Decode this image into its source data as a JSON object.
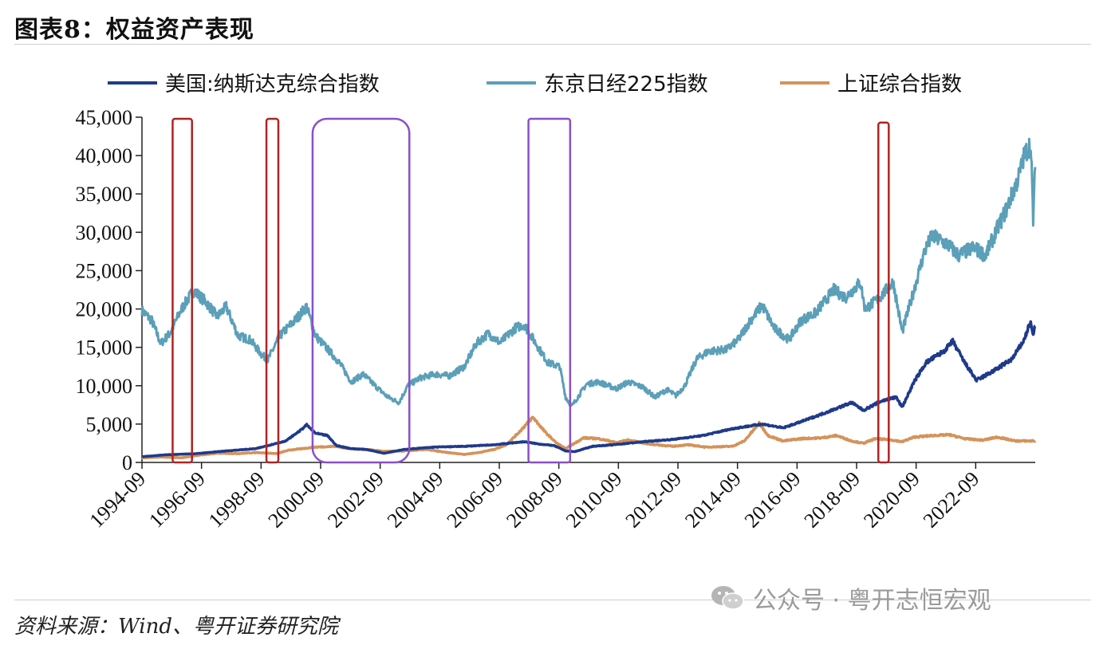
{
  "header": {
    "title": "图表8：权益资产表现"
  },
  "footer": {
    "source": "资料来源：Wind、粤开证券研究院"
  },
  "watermark": {
    "text": "公众号 · 粤开志恒宏观",
    "icon": "wechat-icon"
  },
  "chart_data": {
    "type": "line",
    "grid": false,
    "legend_position": "top",
    "ylim": [
      0,
      45000
    ],
    "yticks": [
      "0",
      "5,000",
      "10,000",
      "15,000",
      "20,000",
      "25,000",
      "30,000",
      "35,000",
      "40,000",
      "45,000"
    ],
    "yticks_values": [
      0,
      5000,
      10000,
      15000,
      20000,
      25000,
      30000,
      35000,
      40000,
      45000
    ],
    "xlim": [
      1994.67,
      2024.67
    ],
    "xticks": [
      "1994-09",
      "1996-09",
      "1998-09",
      "2000-09",
      "2002-09",
      "2004-09",
      "2006-09",
      "2008-09",
      "2010-09",
      "2012-09",
      "2014-09",
      "2016-09",
      "2018-09",
      "2020-09",
      "2022-09"
    ],
    "xticks_values": [
      1994.67,
      1996.67,
      1998.67,
      2000.67,
      2002.67,
      2004.67,
      2006.67,
      2008.67,
      2010.67,
      2012.67,
      2014.67,
      2016.67,
      2018.67,
      2020.67,
      2022.67
    ],
    "series": [
      {
        "name": "美国:纳斯达克综合指数",
        "color": "#1f3a8a",
        "points": [
          [
            1994.67,
            750
          ],
          [
            1995.5,
            1000
          ],
          [
            1996.5,
            1150
          ],
          [
            1997.5,
            1500
          ],
          [
            1998.5,
            1800
          ],
          [
            1999.5,
            2800
          ],
          [
            2000.0,
            4200
          ],
          [
            2000.2,
            4900
          ],
          [
            2000.5,
            3800
          ],
          [
            2000.9,
            3500
          ],
          [
            2001.2,
            2200
          ],
          [
            2001.7,
            1800
          ],
          [
            2002.2,
            1700
          ],
          [
            2002.8,
            1200
          ],
          [
            2003.5,
            1700
          ],
          [
            2004.5,
            2000
          ],
          [
            2005.5,
            2100
          ],
          [
            2006.5,
            2300
          ],
          [
            2007.5,
            2700
          ],
          [
            2008.0,
            2400
          ],
          [
            2008.5,
            2200
          ],
          [
            2008.9,
            1500
          ],
          [
            2009.2,
            1400
          ],
          [
            2009.8,
            2100
          ],
          [
            2010.5,
            2300
          ],
          [
            2011.5,
            2700
          ],
          [
            2012.5,
            3000
          ],
          [
            2013.5,
            3500
          ],
          [
            2014.5,
            4400
          ],
          [
            2015.5,
            5000
          ],
          [
            2016.2,
            4500
          ],
          [
            2016.8,
            5300
          ],
          [
            2017.5,
            6300
          ],
          [
            2018.5,
            7800
          ],
          [
            2018.9,
            6800
          ],
          [
            2019.5,
            8000
          ],
          [
            2020.0,
            8500
          ],
          [
            2020.2,
            7200
          ],
          [
            2020.6,
            10500
          ],
          [
            2021.0,
            13000
          ],
          [
            2021.6,
            14500
          ],
          [
            2021.9,
            15800
          ],
          [
            2022.3,
            13000
          ],
          [
            2022.7,
            10700
          ],
          [
            2023.3,
            12000
          ],
          [
            2023.9,
            13500
          ],
          [
            2024.3,
            16000
          ],
          [
            2024.5,
            18300
          ],
          [
            2024.6,
            16600
          ],
          [
            2024.67,
            17800
          ]
        ]
      },
      {
        "name": "东京日经225指数",
        "color": "#5b9fb8",
        "points": [
          [
            1994.67,
            19800
          ],
          [
            1995.0,
            18500
          ],
          [
            1995.3,
            15500
          ],
          [
            1995.6,
            16800
          ],
          [
            1996.0,
            20000
          ],
          [
            1996.4,
            22400
          ],
          [
            1996.8,
            21000
          ],
          [
            1997.2,
            19000
          ],
          [
            1997.5,
            20300
          ],
          [
            1997.9,
            16500
          ],
          [
            1998.3,
            16000
          ],
          [
            1998.7,
            14000
          ],
          [
            1998.9,
            13400
          ],
          [
            1999.3,
            16500
          ],
          [
            1999.8,
            18500
          ],
          [
            2000.2,
            20300
          ],
          [
            2000.5,
            16500
          ],
          [
            2000.9,
            14800
          ],
          [
            2001.3,
            13000
          ],
          [
            2001.7,
            10500
          ],
          [
            2002.1,
            11500
          ],
          [
            2002.5,
            10000
          ],
          [
            2002.9,
            8600
          ],
          [
            2003.3,
            7800
          ],
          [
            2003.6,
            10000
          ],
          [
            2004.0,
            11000
          ],
          [
            2004.5,
            11500
          ],
          [
            2005.0,
            11300
          ],
          [
            2005.5,
            12500
          ],
          [
            2005.9,
            15500
          ],
          [
            2006.3,
            16800
          ],
          [
            2006.7,
            15600
          ],
          [
            2007.2,
            17500
          ],
          [
            2007.5,
            18000
          ],
          [
            2007.9,
            15500
          ],
          [
            2008.3,
            13000
          ],
          [
            2008.7,
            12500
          ],
          [
            2008.9,
            8500
          ],
          [
            2009.1,
            7300
          ],
          [
            2009.6,
            10200
          ],
          [
            2010.0,
            10500
          ],
          [
            2010.6,
            9600
          ],
          [
            2011.0,
            10500
          ],
          [
            2011.5,
            9800
          ],
          [
            2011.9,
            8500
          ],
          [
            2012.3,
            9500
          ],
          [
            2012.6,
            8700
          ],
          [
            2012.9,
            10000
          ],
          [
            2013.3,
            13500
          ],
          [
            2013.7,
            14500
          ],
          [
            2014.3,
            14700
          ],
          [
            2014.7,
            16000
          ],
          [
            2015.1,
            18500
          ],
          [
            2015.5,
            20500
          ],
          [
            2015.9,
            17500
          ],
          [
            2016.4,
            16000
          ],
          [
            2016.8,
            18500
          ],
          [
            2017.3,
            19500
          ],
          [
            2017.9,
            22500
          ],
          [
            2018.3,
            21500
          ],
          [
            2018.8,
            23500
          ],
          [
            2018.95,
            20000
          ],
          [
            2019.4,
            21300
          ],
          [
            2019.9,
            23500
          ],
          [
            2020.2,
            17000
          ],
          [
            2020.6,
            22500
          ],
          [
            2020.95,
            27500
          ],
          [
            2021.2,
            29500
          ],
          [
            2021.7,
            28500
          ],
          [
            2022.1,
            27000
          ],
          [
            2022.6,
            28000
          ],
          [
            2023.0,
            27000
          ],
          [
            2023.4,
            30500
          ],
          [
            2023.7,
            33000
          ],
          [
            2024.1,
            37000
          ],
          [
            2024.3,
            40000
          ],
          [
            2024.5,
            41500
          ],
          [
            2024.55,
            38000
          ],
          [
            2024.6,
            31500
          ],
          [
            2024.67,
            38500
          ]
        ]
      },
      {
        "name": "上证综合指数",
        "color": "#d4935a",
        "points": [
          [
            1994.67,
            600
          ],
          [
            1995.3,
            700
          ],
          [
            1996.0,
            600
          ],
          [
            1996.5,
            900
          ],
          [
            1997.2,
            1200
          ],
          [
            1997.9,
            1150
          ],
          [
            1998.5,
            1300
          ],
          [
            1999.2,
            1150
          ],
          [
            1999.6,
            1600
          ],
          [
            2000.5,
            2000
          ],
          [
            2001.2,
            2100
          ],
          [
            2001.6,
            1800
          ],
          [
            2002.3,
            1650
          ],
          [
            2002.8,
            1450
          ],
          [
            2003.5,
            1500
          ],
          [
            2004.2,
            1700
          ],
          [
            2004.9,
            1300
          ],
          [
            2005.5,
            1050
          ],
          [
            2006.0,
            1300
          ],
          [
            2006.5,
            1700
          ],
          [
            2006.9,
            2300
          ],
          [
            2007.3,
            3800
          ],
          [
            2007.8,
            5900
          ],
          [
            2008.2,
            4000
          ],
          [
            2008.6,
            2500
          ],
          [
            2008.9,
            1800
          ],
          [
            2009.5,
            3200
          ],
          [
            2010.0,
            3100
          ],
          [
            2010.6,
            2600
          ],
          [
            2011.0,
            2900
          ],
          [
            2011.7,
            2400
          ],
          [
            2012.5,
            2100
          ],
          [
            2013.0,
            2300
          ],
          [
            2013.6,
            2000
          ],
          [
            2014.5,
            2100
          ],
          [
            2014.9,
            2800
          ],
          [
            2015.4,
            5100
          ],
          [
            2015.7,
            3500
          ],
          [
            2016.2,
            2800
          ],
          [
            2016.8,
            3100
          ],
          [
            2017.5,
            3200
          ],
          [
            2018.0,
            3500
          ],
          [
            2018.5,
            2800
          ],
          [
            2018.9,
            2500
          ],
          [
            2019.3,
            3100
          ],
          [
            2019.9,
            2900
          ],
          [
            2020.2,
            2700
          ],
          [
            2020.6,
            3300
          ],
          [
            2021.2,
            3500
          ],
          [
            2021.8,
            3600
          ],
          [
            2022.3,
            3100
          ],
          [
            2022.9,
            2900
          ],
          [
            2023.4,
            3300
          ],
          [
            2024.0,
            2800
          ],
          [
            2024.67,
            2800
          ]
        ]
      }
    ],
    "highlight_boxes": [
      {
        "color": "#b22222",
        "x0": 1995.7,
        "x1": 1996.35,
        "y0": 0,
        "y1": 45000
      },
      {
        "color": "#b22222",
        "x0": 1998.85,
        "x1": 1999.25,
        "y0": 0,
        "y1": 45000
      },
      {
        "color": "#8a4fc8",
        "x0": 2000.4,
        "x1": 2003.65,
        "y0": 0,
        "y1": 45000
      },
      {
        "color": "#8a4fc8",
        "x0": 2007.65,
        "x1": 2009.05,
        "y0": 0,
        "y1": 45000
      },
      {
        "color": "#b22222",
        "x0": 2019.4,
        "x1": 2019.75,
        "y0": 0,
        "y1": 44500
      }
    ]
  }
}
